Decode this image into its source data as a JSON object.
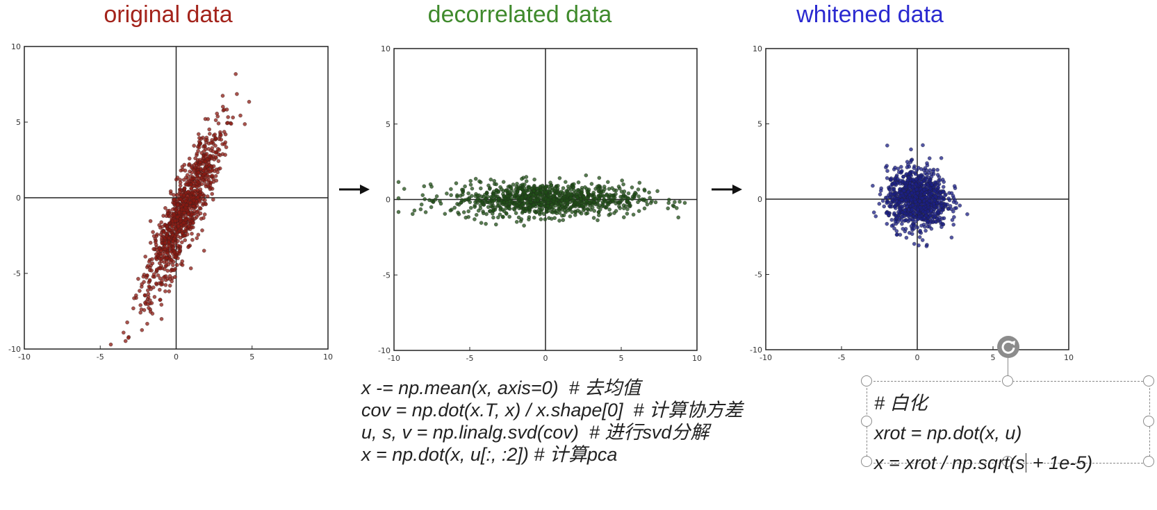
{
  "chart_data": [
    {
      "type": "scatter",
      "title": "original data",
      "title_color": "#a3231b",
      "point_color": "#8b1a12",
      "xlim": [
        -10,
        10
      ],
      "ylim": [
        -10,
        10
      ],
      "xticks": [
        "-10",
        "-5",
        "0",
        "5",
        "10"
      ],
      "yticks": [
        "10",
        "5",
        "0",
        "-5",
        "-10"
      ],
      "distribution": {
        "center": [
          0.5,
          -1.0
        ],
        "principal_angle_deg": 67,
        "std_major": 3.1,
        "std_minor": 0.55
      },
      "n_points": 1000
    },
    {
      "type": "scatter",
      "title": "decorrelated data",
      "title_color": "#3f8a2c",
      "point_color": "#1f4d16",
      "xlim": [
        -10,
        10
      ],
      "ylim": [
        -10,
        10
      ],
      "xticks": [
        "-10",
        "-5",
        "0",
        "5",
        "10"
      ],
      "yticks": [
        "10",
        "5",
        "0",
        "-5",
        "-10"
      ],
      "distribution": {
        "center": [
          0,
          0
        ],
        "principal_angle_deg": 0,
        "std_major": 3.1,
        "std_minor": 0.55
      },
      "n_points": 1000
    },
    {
      "type": "scatter",
      "title": "whitened data",
      "title_color": "#2b2ad0",
      "point_color": "#1b1f86",
      "xlim": [
        -10,
        10
      ],
      "ylim": [
        -10,
        10
      ],
      "xticks": [
        "-10",
        "-5",
        "0",
        "5",
        "10"
      ],
      "yticks": [
        "10",
        "5",
        "0",
        "-5",
        "-10"
      ],
      "distribution": {
        "center": [
          0,
          0
        ],
        "principal_angle_deg": 0,
        "std_major": 1.0,
        "std_minor": 1.0
      },
      "n_points": 1000
    }
  ],
  "code_left": [
    "x -= np.mean(x, axis=0)  # 去均值",
    "cov = np.dot(x.T, x) / x.shape[0]  # 计算协方差",
    "u, s, v = np.linalg.svd(cov)  # 进行svd分解",
    "x = np.dot(x, u[:, :2]) # 计算pca"
  ],
  "code_right": {
    "line1": "# 白化",
    "line2": "xrot = np.dot(x, u)",
    "line3_before_caret": "x = xrot / np.sqrt(s",
    "line3_after_caret": " + 1e-5)"
  }
}
